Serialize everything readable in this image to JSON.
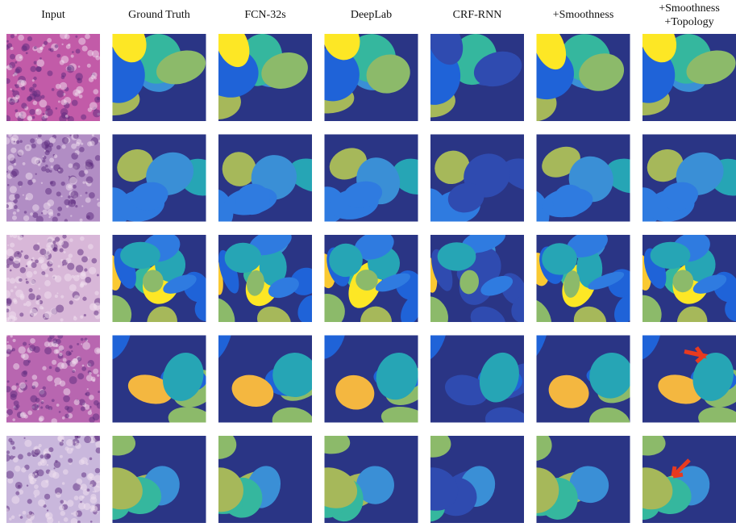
{
  "header": {
    "columns": [
      [
        "Input"
      ],
      [
        "Ground Truth"
      ],
      [
        "FCN-32s"
      ],
      [
        "DeepLab"
      ],
      [
        "CRF-RNN"
      ],
      [
        "+Smoothness"
      ],
      [
        "+Smoothness",
        "+Topology"
      ]
    ]
  }
}
